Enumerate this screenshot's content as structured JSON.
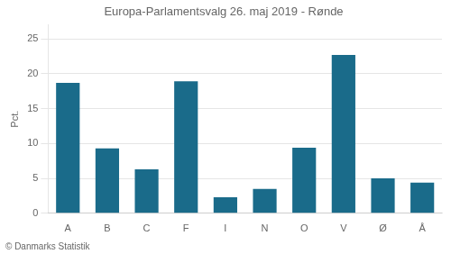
{
  "chart_data": {
    "type": "bar",
    "title": "Europa-Parlamentsvalg 26. maj 2019 - Rønde",
    "categories": [
      "A",
      "B",
      "C",
      "F",
      "I",
      "N",
      "O",
      "V",
      "Ø",
      "Å"
    ],
    "values": [
      18.7,
      9.3,
      6.3,
      18.9,
      2.3,
      3.5,
      9.4,
      22.7,
      5.0,
      4.4
    ],
    "color": "#1a6b8a",
    "ylabel": "Pct.",
    "ylim": [
      0,
      27
    ],
    "yticks": [
      0,
      5,
      10,
      15,
      20,
      25
    ],
    "grid": true,
    "annotations": [
      "© Danmarks Statistik"
    ]
  }
}
